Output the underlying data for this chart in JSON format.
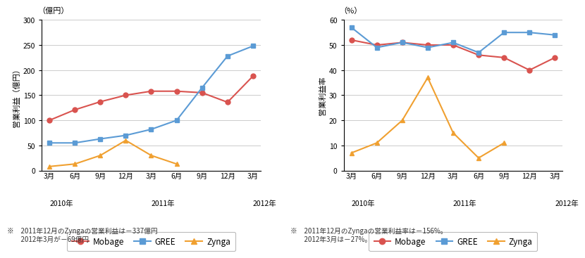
{
  "x_labels_months": [
    "3月",
    "6月",
    "9月",
    "12月",
    "3月",
    "6月",
    "9月",
    "12月",
    "3月"
  ],
  "year_positions": [
    [
      0,
      "2010年"
    ],
    [
      4,
      "2011年"
    ],
    [
      8,
      "2012年"
    ]
  ],
  "left": {
    "unit_label": "（億円）",
    "ylabel": "営業利益（億円）",
    "ylim": [
      0,
      300
    ],
    "yticks": [
      0,
      50,
      100,
      150,
      200,
      250,
      300
    ],
    "mobage": [
      100,
      121,
      137,
      150,
      158,
      158,
      155,
      136,
      188
    ],
    "gree": [
      55,
      55,
      63,
      70,
      82,
      100,
      165,
      228,
      248
    ],
    "zynga": [
      8,
      13,
      30,
      60,
      30,
      13,
      null,
      null,
      null
    ],
    "note1": "※　2011年12月のZyngaの営業利益は－337億円",
    "note2": "　　2012年3月が－69億円"
  },
  "right": {
    "unit_label": "（%）",
    "ylabel": "営業利益率",
    "ylim": [
      0,
      60
    ],
    "yticks": [
      0,
      10,
      20,
      30,
      40,
      50,
      60
    ],
    "mobage": [
      52,
      50,
      51,
      50,
      50,
      46,
      45,
      40,
      45
    ],
    "gree": [
      57,
      49,
      51,
      49,
      51,
      47,
      55,
      55,
      54
    ],
    "zynga": [
      7,
      11,
      20,
      37,
      15,
      5,
      11,
      null,
      null
    ],
    "note1": "※　2011年12月のZyngaの営業利益率は－156%。",
    "note2": "　　2012年3月は－27%。"
  },
  "colors": {
    "mobage": "#d9534f",
    "gree": "#5b9bd5",
    "zynga": "#f0a030"
  },
  "bg_color": "#ffffff",
  "grid_color": "#cccccc",
  "plot_bg": "#f0f0f0"
}
